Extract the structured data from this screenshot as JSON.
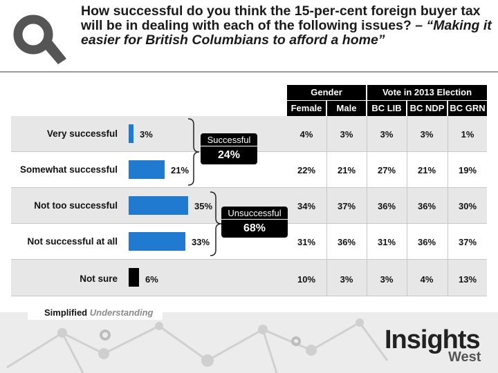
{
  "title": {
    "question": "How successful do you think the 15-per-cent foreign buyer tax will be in dealing with each of the following issues? – ",
    "issue": "“Making it easier for British Columbians to afford a home”"
  },
  "header": {
    "gender": "Gender",
    "vote": "Vote in 2013 Election",
    "columns": [
      "Female",
      "Male",
      "BC LIB",
      "BC NDP",
      "BC GRN"
    ]
  },
  "rows": [
    {
      "label": "Very successful",
      "value_label": "3%",
      "cells": [
        "4%",
        "3%",
        "3%",
        "3%",
        "1%"
      ]
    },
    {
      "label": "Somewhat successful",
      "value_label": "21%",
      "cells": [
        "22%",
        "21%",
        "27%",
        "21%",
        "19%"
      ]
    },
    {
      "label": "Not too successful",
      "value_label": "35%",
      "cells": [
        "34%",
        "37%",
        "36%",
        "36%",
        "30%"
      ]
    },
    {
      "label": "Not successful at all",
      "value_label": "33%",
      "cells": [
        "31%",
        "36%",
        "31%",
        "36%",
        "37%"
      ]
    },
    {
      "label": "Not sure",
      "value_label": "6%",
      "cells": [
        "10%",
        "3%",
        "3%",
        "4%",
        "13%"
      ]
    }
  ],
  "callouts": {
    "successful": {
      "title": "Successful",
      "value": "24%"
    },
    "unsuccessful": {
      "title": "Unsuccessful",
      "value": "68%"
    }
  },
  "footer": {
    "tagline_1": "Simplified",
    "tagline_2": "Understanding",
    "brand_main": "Insights",
    "brand_sub": "West"
  },
  "colors": {
    "bar_blue": "#1f7ad0",
    "bar_not_sure": "#000000",
    "row_shaded": "#e7e7e7",
    "header_bg": "#000000"
  },
  "chart_data": {
    "type": "bar",
    "orientation": "horizontal",
    "categories": [
      "Very successful",
      "Somewhat successful",
      "Not too successful",
      "Not successful at all",
      "Not sure"
    ],
    "values": [
      3,
      21,
      35,
      33,
      6
    ],
    "table": {
      "columns": [
        "Female",
        "Male",
        "BC LIB",
        "BC NDP",
        "BC GRN"
      ],
      "values": [
        [
          4,
          3,
          3,
          3,
          1
        ],
        [
          22,
          21,
          27,
          21,
          19
        ],
        [
          34,
          37,
          36,
          36,
          30
        ],
        [
          31,
          36,
          31,
          36,
          37
        ],
        [
          10,
          3,
          3,
          4,
          13
        ]
      ]
    }
  }
}
